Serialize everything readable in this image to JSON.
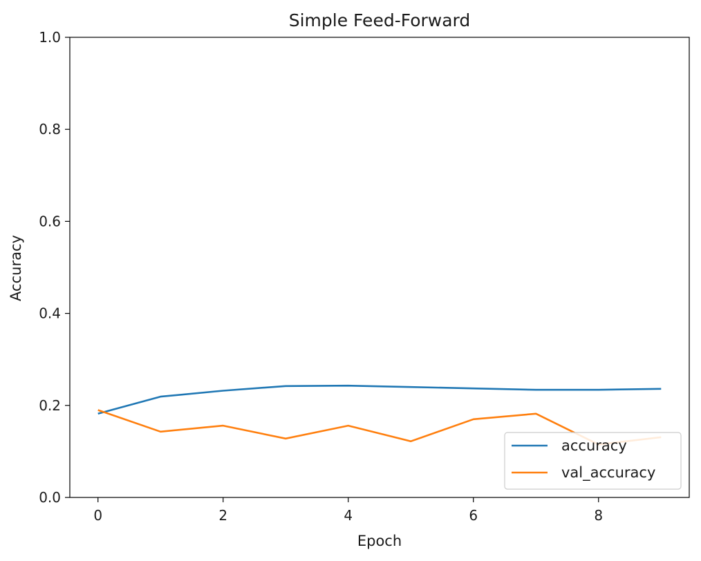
{
  "chart_data": {
    "type": "line",
    "title": "Simple Feed-Forward",
    "xlabel": "Epoch",
    "ylabel": "Accuracy",
    "xlim": [
      -0.45,
      9.45
    ],
    "ylim": [
      0,
      1
    ],
    "x_ticks": [
      "0",
      "2",
      "4",
      "6",
      "8"
    ],
    "y_ticks": [
      "0.0",
      "0.2",
      "0.4",
      "0.6",
      "0.8",
      "1.0"
    ],
    "x": [
      0,
      1,
      2,
      3,
      4,
      5,
      6,
      7,
      8,
      9
    ],
    "series": [
      {
        "name": "accuracy",
        "color": "#1f77b4",
        "values": [
          0.182,
          0.219,
          0.232,
          0.242,
          0.243,
          0.24,
          0.237,
          0.234,
          0.234,
          0.236
        ]
      },
      {
        "name": "val_accuracy",
        "color": "#ff7f0e",
        "values": [
          0.19,
          0.143,
          0.156,
          0.128,
          0.156,
          0.122,
          0.17,
          0.182,
          0.115,
          0.131
        ]
      }
    ],
    "grid": false,
    "legend_position": "lower right"
  }
}
